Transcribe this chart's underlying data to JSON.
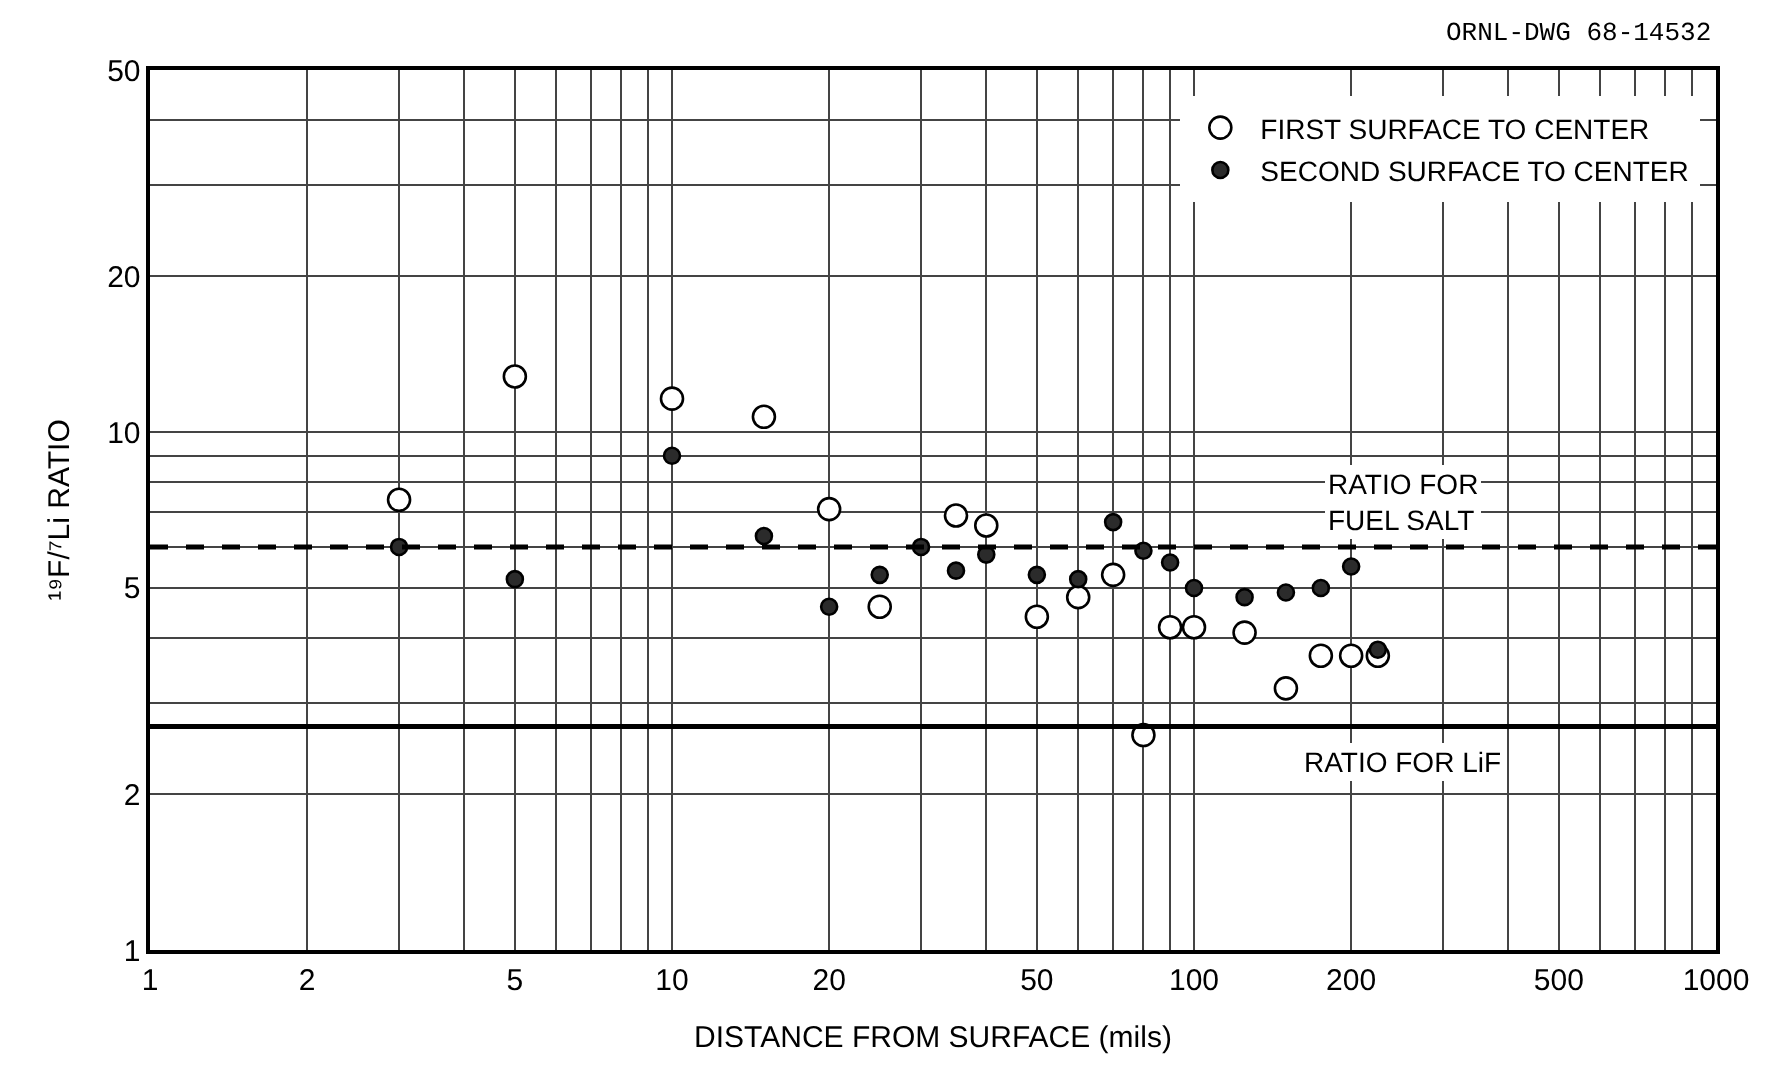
{
  "chart_data": {
    "type": "scatter",
    "xlabel": "DISTANCE FROM SURFACE (mils)",
    "ylabel": "¹⁹F/⁷Li RATIO",
    "log": "xy",
    "grid": true,
    "legend": "top right",
    "marker": "circle",
    "xlim": [
      1,
      1000
    ],
    "ylim": [
      1,
      50
    ],
    "xticks": [
      1,
      2,
      {
        "value": 3,
        "label": null
      },
      {
        "value": 4,
        "label": null
      },
      5,
      {
        "value": 6,
        "label": null
      },
      {
        "value": 7,
        "label": null
      },
      {
        "value": 8,
        "label": null
      },
      {
        "value": 9,
        "label": null
      },
      10,
      20,
      {
        "value": 30,
        "label": null
      },
      {
        "value": 40,
        "label": null
      },
      50,
      {
        "value": 60,
        "label": null
      },
      {
        "value": 70,
        "label": null
      },
      {
        "value": 80,
        "label": null
      },
      {
        "value": 90,
        "label": null
      },
      100,
      200,
      {
        "value": 300,
        "label": null
      },
      {
        "value": 400,
        "label": null
      },
      500,
      {
        "value": 600,
        "label": null
      },
      {
        "value": 700,
        "label": null
      },
      {
        "value": 800,
        "label": null
      },
      {
        "value": 900,
        "label": null
      },
      1000
    ],
    "yticks": [
      1,
      2,
      {
        "value": 3,
        "label": null
      },
      {
        "value": 4,
        "label": null
      },
      5,
      {
        "value": 6,
        "label": null
      },
      {
        "value": 7,
        "label": null
      },
      {
        "value": 8,
        "label": null
      },
      {
        "value": 9,
        "label": null
      },
      10,
      20,
      {
        "value": 30,
        "label": null
      },
      {
        "value": 40,
        "label": null
      },
      50
    ],
    "series": [
      {
        "name": "FIRST SURFACE TO CENTER",
        "color": "#ffffff",
        "x": [
          3,
          5,
          10,
          15,
          20,
          25,
          35,
          40,
          50,
          60,
          70,
          80,
          90,
          100,
          125,
          150,
          175,
          200,
          225
        ],
        "values": [
          7.4,
          12.8,
          11.6,
          10.7,
          7.1,
          4.6,
          6.9,
          6.6,
          4.4,
          4.8,
          5.3,
          2.6,
          4.2,
          4.2,
          4.1,
          3.2,
          3.7,
          3.7,
          3.7
        ]
      },
      {
        "name": "SECOND SURFACE TO CENTER",
        "color": "#2b2b2b",
        "x": [
          3,
          5,
          10,
          15,
          20,
          25,
          30,
          35,
          40,
          50,
          60,
          70,
          80,
          90,
          100,
          125,
          150,
          175,
          200,
          225
        ],
        "values": [
          6.0,
          5.2,
          9.0,
          6.3,
          4.6,
          5.3,
          6.0,
          5.4,
          5.8,
          5.3,
          5.2,
          6.7,
          5.9,
          5.6,
          5.0,
          4.8,
          4.9,
          5.0,
          5.5,
          3.8
        ]
      }
    ],
    "ref_lines": [
      {
        "axis": "y",
        "value": 6.0,
        "label": "RATIO FOR\nFUEL SALT",
        "line_style": "dashed",
        "color": "#000000"
      },
      {
        "axis": "y",
        "value": 2.7,
        "label": "RATIO FOR LiF",
        "line_style": "solid",
        "color": "#000000"
      }
    ],
    "annotations": [
      "ORNL-DWG 68-14532"
    ]
  }
}
